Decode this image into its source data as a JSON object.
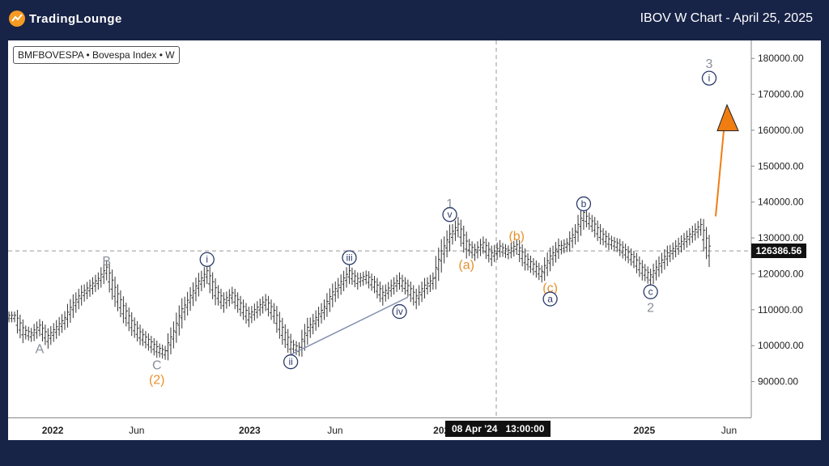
{
  "header": {
    "brand": "TradingLounge",
    "title": "IBOV W Chart - April 25, 2025"
  },
  "symbol": "BMFBOVESPA • Bovespa Index • W",
  "price": {
    "last_label": "126386.56",
    "last_value": 126386.56
  },
  "crosshair": {
    "label": "08 Apr '24   13:00:00"
  },
  "colors": {
    "background": "#172347",
    "wave_blue": "#2b3a6b",
    "wave_gray": "#8a8f99",
    "wave_orange": "#e8912d",
    "trendline": "#8792b0",
    "arrow": "#f07d12"
  },
  "chart_data": {
    "type": "ohlc-bar",
    "ylim": [
      80000,
      185000
    ],
    "y_ticks": [
      "180000.00",
      "170000.00",
      "160000.00",
      "150000.00",
      "140000.00",
      "130000.00",
      "120000.00",
      "110000.00",
      "100000.00",
      "90000.00"
    ],
    "y_tick_values": [
      180000,
      170000,
      160000,
      150000,
      140000,
      130000,
      120000,
      110000,
      100000,
      90000
    ],
    "x_ticks": [
      {
        "label": "2022",
        "year": true,
        "t": 0.06
      },
      {
        "label": "Jun",
        "year": false,
        "t": 0.173
      },
      {
        "label": "2023",
        "year": true,
        "t": 0.325
      },
      {
        "label": "Jun",
        "year": false,
        "t": 0.44
      },
      {
        "label": "202",
        "year": true,
        "t": 0.583
      },
      {
        "label": "2025",
        "year": true,
        "t": 0.856
      },
      {
        "label": "Jun",
        "year": false,
        "t": 0.97
      }
    ],
    "series_close": [
      108000,
      104000,
      103000,
      105000,
      102000,
      104500,
      107000,
      111000,
      114000,
      116000,
      118000,
      121000,
      115000,
      110000,
      106000,
      103000,
      101000,
      99000,
      98000,
      103000,
      109000,
      113000,
      117000,
      120000,
      115000,
      112000,
      114000,
      111000,
      108000,
      110000,
      112000,
      109000,
      104000,
      100000,
      99000,
      104000,
      107000,
      110000,
      114000,
      117000,
      120000,
      118000,
      119000,
      117000,
      114000,
      116000,
      118000,
      116000,
      113000,
      116000,
      118000,
      125000,
      130000,
      133000,
      128000,
      126000,
      128000,
      125000,
      127000,
      126000,
      127500,
      124000,
      122000,
      120000,
      124000,
      127000,
      128000,
      131000,
      136000,
      134000,
      131000,
      129000,
      128000,
      126000,
      124000,
      121000,
      119000,
      122000,
      125000,
      127000,
      129000,
      131000,
      133000,
      126386.56
    ],
    "forecast_arrow": {
      "from": 136000,
      "to": 163000
    },
    "wave_labels": [
      {
        "text": "A",
        "color": "gray",
        "circle": false,
        "i": 3,
        "price": 99000
      },
      {
        "text": "B",
        "color": "gray",
        "circle": false,
        "i": 11,
        "price": 123500
      },
      {
        "text": "C",
        "color": "gray",
        "circle": false,
        "i": 17,
        "price": 94500
      },
      {
        "text": "(2)",
        "color": "orange",
        "circle": false,
        "i": 17,
        "price": 90500
      },
      {
        "text": "i",
        "color": "blue",
        "circle": true,
        "i": 23,
        "price": 124000
      },
      {
        "text": "ii",
        "color": "blue",
        "circle": true,
        "i": 33,
        "price": 95500
      },
      {
        "text": "iii",
        "color": "blue",
        "circle": true,
        "i": 40,
        "price": 124500
      },
      {
        "text": "iv",
        "color": "blue",
        "circle": true,
        "i": 46,
        "price": 109500
      },
      {
        "text": "1",
        "color": "gray",
        "circle": false,
        "i": 52,
        "price": 139500
      },
      {
        "text": "v",
        "color": "blue",
        "circle": true,
        "i": 52,
        "price": 136500
      },
      {
        "text": "(a)",
        "color": "orange",
        "circle": false,
        "i": 54,
        "price": 122500
      },
      {
        "text": "(b)",
        "color": "orange",
        "circle": false,
        "i": 60,
        "price": 130500
      },
      {
        "text": "(c)",
        "color": "orange",
        "circle": false,
        "i": 64,
        "price": 116000
      },
      {
        "text": "a",
        "color": "blue",
        "circle": true,
        "i": 64,
        "price": 113000
      },
      {
        "text": "b",
        "color": "blue",
        "circle": true,
        "i": 68,
        "price": 139500
      },
      {
        "text": "c",
        "color": "blue",
        "circle": true,
        "i": 76,
        "price": 115000
      },
      {
        "text": "2",
        "color": "gray",
        "circle": false,
        "i": 76,
        "price": 110500
      },
      {
        "text": "3",
        "color": "gray",
        "circle": false,
        "i": 83,
        "price": 178500
      },
      {
        "text": "i",
        "color": "blue",
        "circle": true,
        "i": 83,
        "price": 174500
      }
    ]
  }
}
